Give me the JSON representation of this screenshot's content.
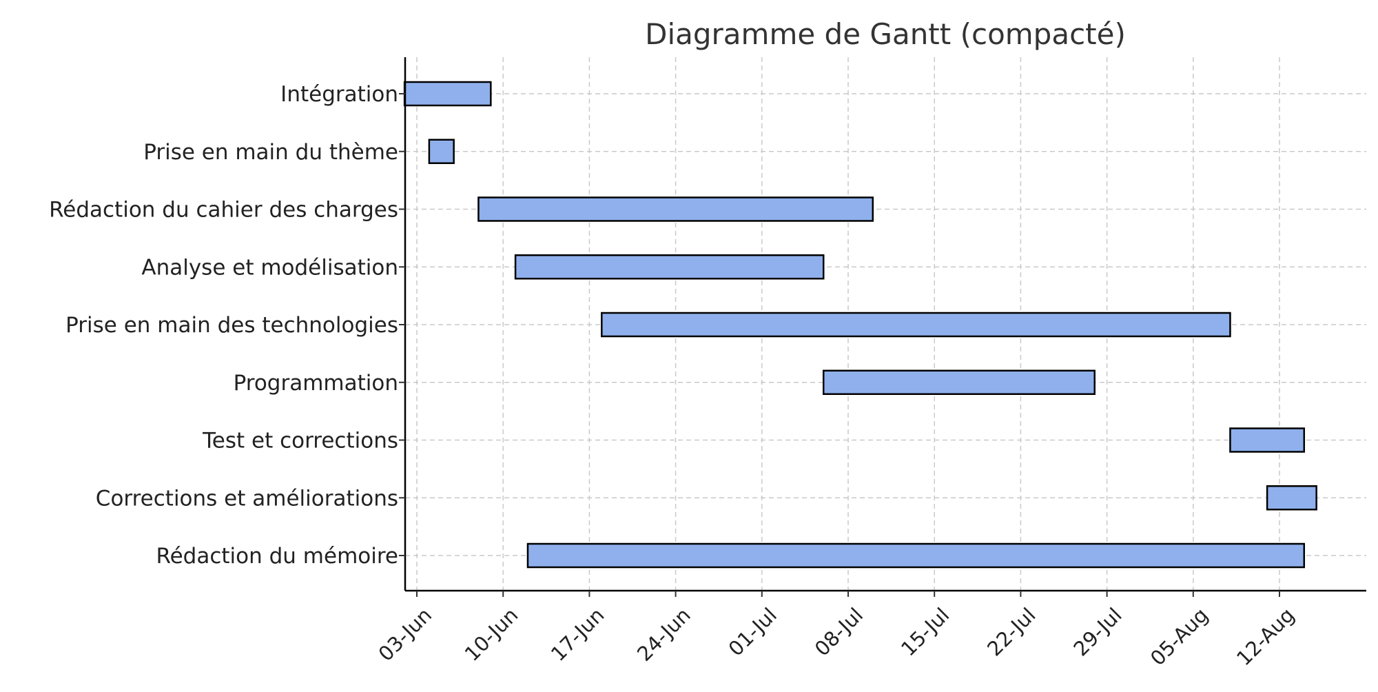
{
  "chart_data": {
    "type": "gantt",
    "title": "Diagramme de Gantt (compacté)",
    "xlabel": "",
    "ylabel": "",
    "x_axis": {
      "type": "date",
      "range": [
        "2024-06-02",
        "2024-08-18"
      ],
      "ticks": [
        {
          "date": "2024-06-03",
          "label": "03-Jun"
        },
        {
          "date": "2024-06-10",
          "label": "10-Jun"
        },
        {
          "date": "2024-06-17",
          "label": "17-Jun"
        },
        {
          "date": "2024-06-24",
          "label": "24-Jun"
        },
        {
          "date": "2024-07-01",
          "label": "01-Jul"
        },
        {
          "date": "2024-07-08",
          "label": "08-Jul"
        },
        {
          "date": "2024-07-15",
          "label": "15-Jul"
        },
        {
          "date": "2024-07-22",
          "label": "22-Jul"
        },
        {
          "date": "2024-07-29",
          "label": "29-Jul"
        },
        {
          "date": "2024-08-05",
          "label": "05-Aug"
        },
        {
          "date": "2024-08-12",
          "label": "12-Aug"
        }
      ]
    },
    "grid": true,
    "tasks": [
      {
        "name": "Intégration",
        "start": "2024-06-02",
        "end": "2024-06-09"
      },
      {
        "name": "Prise en main du thème",
        "start": "2024-06-04",
        "end": "2024-06-06"
      },
      {
        "name": "Rédaction du cahier des charges",
        "start": "2024-06-08",
        "end": "2024-07-10"
      },
      {
        "name": "Analyse et modélisation",
        "start": "2024-06-11",
        "end": "2024-07-06"
      },
      {
        "name": "Prise en main des technologies",
        "start": "2024-06-18",
        "end": "2024-08-08"
      },
      {
        "name": "Programmation",
        "start": "2024-07-06",
        "end": "2024-07-28"
      },
      {
        "name": "Test et corrections",
        "start": "2024-08-08",
        "end": "2024-08-14"
      },
      {
        "name": "Corrections et améliorations",
        "start": "2024-08-11",
        "end": "2024-08-15"
      },
      {
        "name": "Rédaction du mémoire",
        "start": "2024-06-12",
        "end": "2024-08-14"
      }
    ],
    "colors": {
      "bar_fill": "#8fb0ec",
      "bar_edge": "#000000"
    }
  }
}
